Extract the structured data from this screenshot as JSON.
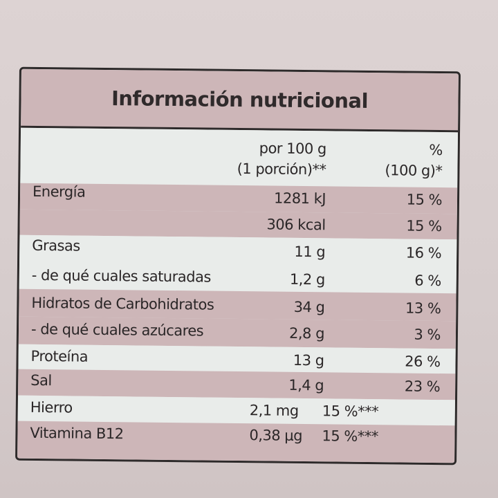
{
  "title": "Información nutricional",
  "header": {
    "amount": [
      "por 100 g",
      "(1 porción)**"
    ],
    "percent": [
      "%",
      "(100 g)*"
    ]
  },
  "rows": [
    {
      "label": "Energía",
      "amount": "1281 kJ",
      "percent": "15 %"
    },
    {
      "amount": "306 kcal",
      "percent": "15 %"
    },
    {
      "label": "Grasas",
      "amount": "11 g",
      "percent": "16 %"
    },
    {
      "label": "- de qué cuales saturadas",
      "amount": "1,2 g",
      "percent": "6 %"
    },
    {
      "label": "Hidratos de Carbohidratos",
      "amount": "34 g",
      "percent": "13 %"
    },
    {
      "label": "- de qué cuales azúcares",
      "amount": "2,8 g",
      "percent": "3 %"
    },
    {
      "label": "Proteína",
      "amount": "13 g",
      "percent": "26 %"
    },
    {
      "label": "Sal",
      "amount": "1,4 g",
      "percent": "23 %"
    },
    {
      "label": "Hierro",
      "amount": "2,1 mg",
      "percent": "15 %***"
    },
    {
      "label": "Vitamina B12",
      "amount": "0,38 µg",
      "percent": "15 %***"
    }
  ]
}
